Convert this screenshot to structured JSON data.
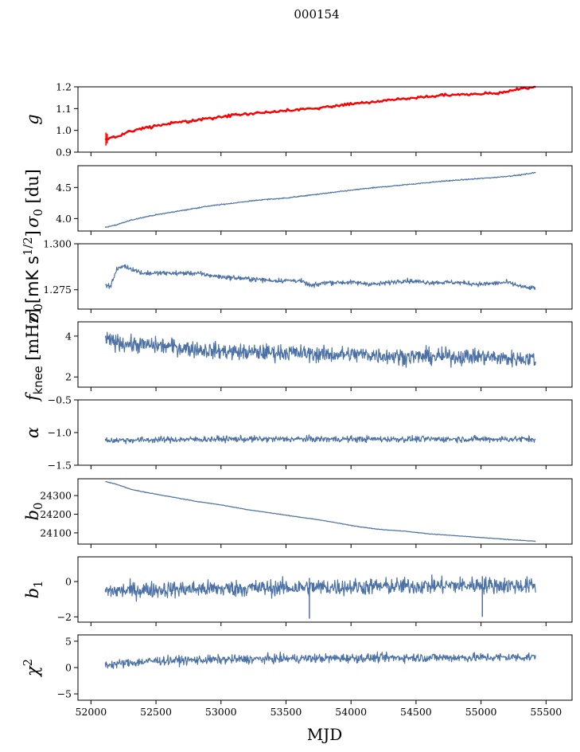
{
  "figure": {
    "suptitle": "000154",
    "xlabel": "MJD",
    "line_color": "#4c72a5",
    "highlight_color": "#ff0000"
  },
  "chart_data": [
    {
      "type": "line",
      "ylabel": "g",
      "ylim": [
        0.9,
        1.2
      ],
      "yticks": [
        0.9,
        1.0,
        1.1,
        1.2
      ],
      "ytick_labels": [
        "0.9",
        "1.0",
        "1.1",
        "1.2"
      ],
      "xlim": [
        51900,
        55700
      ],
      "show_x_ticklabels": false,
      "series": [
        {
          "color": "#4c72a5",
          "x": [
            52110,
            52200,
            52300,
            52400,
            52500,
            52700,
            52900,
            53100,
            53300,
            53500,
            53700,
            53900,
            54100,
            54300,
            54500,
            54700,
            54900,
            55100,
            55300,
            55420
          ],
          "y": [
            0.96,
            0.97,
            0.995,
            1.01,
            1.02,
            1.04,
            1.055,
            1.07,
            1.08,
            1.09,
            1.1,
            1.115,
            1.125,
            1.14,
            1.15,
            1.16,
            1.165,
            1.17,
            1.19,
            1.2
          ]
        },
        {
          "color": "#ff0000",
          "x": [
            52110,
            52200,
            52300,
            52400,
            52500,
            52700,
            52900,
            53100,
            53300,
            53500,
            53700,
            53900,
            54100,
            54300,
            54500,
            54700,
            54900,
            55100,
            55300,
            55420
          ],
          "y": [
            0.96,
            0.97,
            0.995,
            1.01,
            1.02,
            1.04,
            1.055,
            1.07,
            1.08,
            1.09,
            1.1,
            1.115,
            1.125,
            1.14,
            1.15,
            1.16,
            1.165,
            1.17,
            1.19,
            1.2
          ],
          "spread": 0.006,
          "spikes": [
            {
              "x": 52115,
              "low": 0.93,
              "high": 0.99
            },
            {
              "x": 52125,
              "low": 0.94,
              "high": 0.985
            }
          ]
        }
      ]
    },
    {
      "type": "line",
      "ylabel": "σ0 [du]",
      "ylim": [
        3.8,
        4.85
      ],
      "yticks": [
        4.0,
        4.5
      ],
      "ytick_labels": [
        "4.0",
        "4.5"
      ],
      "xlim": [
        51900,
        55700
      ],
      "show_x_ticklabels": false,
      "series": [
        {
          "color": "#4c72a5",
          "x": [
            52110,
            52200,
            52300,
            52400,
            52500,
            52700,
            52900,
            53100,
            53300,
            53500,
            53700,
            53900,
            54100,
            54300,
            54500,
            54700,
            54900,
            55100,
            55300,
            55420
          ],
          "y": [
            3.86,
            3.9,
            3.97,
            4.02,
            4.06,
            4.13,
            4.2,
            4.25,
            4.3,
            4.33,
            4.38,
            4.43,
            4.48,
            4.52,
            4.56,
            4.6,
            4.63,
            4.66,
            4.7,
            4.74
          ],
          "noise": 0.008
        }
      ]
    },
    {
      "type": "line",
      "ylabel": "σ0[mK s1/2]",
      "ylim": [
        1.2645,
        1.3
      ],
      "yticks": [
        1.275,
        1.3
      ],
      "ytick_labels": [
        "1.275",
        "1.300"
      ],
      "xlim": [
        51900,
        55700
      ],
      "show_x_ticklabels": false,
      "series": [
        {
          "color": "#4c72a5",
          "x": [
            52110,
            52150,
            52200,
            52250,
            52400,
            52600,
            52800,
            53000,
            53200,
            53400,
            53600,
            53700,
            53800,
            54000,
            54200,
            54400,
            54600,
            54800,
            55000,
            55200,
            55350,
            55420
          ],
          "y": [
            1.278,
            1.277,
            1.286,
            1.288,
            1.284,
            1.284,
            1.284,
            1.282,
            1.281,
            1.28,
            1.28,
            1.277,
            1.279,
            1.279,
            1.278,
            1.28,
            1.279,
            1.279,
            1.278,
            1.279,
            1.276,
            1.276
          ],
          "noise": 0.0012
        }
      ]
    },
    {
      "type": "line",
      "ylabel": "fknee [mHz]",
      "ylim": [
        1.5,
        4.7
      ],
      "yticks": [
        2,
        4
      ],
      "ytick_labels": [
        "2",
        "4"
      ],
      "xlim": [
        51900,
        55700
      ],
      "show_x_ticklabels": false,
      "series": [
        {
          "color": "#4c72a5",
          "x": [
            52110,
            52300,
            52600,
            52900,
            53200,
            53500,
            53800,
            54100,
            54400,
            54700,
            55000,
            55200,
            55420
          ],
          "y": [
            3.8,
            3.6,
            3.5,
            3.3,
            3.2,
            3.2,
            3.1,
            3.1,
            3.0,
            3.0,
            3.0,
            2.9,
            2.9
          ],
          "noise": 0.38
        }
      ]
    },
    {
      "type": "line",
      "ylabel": "α",
      "ylim": [
        -1.5,
        -0.5
      ],
      "yticks": [
        -1.5,
        -1.0,
        -0.5
      ],
      "ytick_labels": [
        "−1.5",
        "−1.0",
        "−0.5"
      ],
      "xlim": [
        51900,
        55700
      ],
      "show_x_ticklabels": false,
      "series": [
        {
          "color": "#4c72a5",
          "x": [
            52110,
            52500,
            53000,
            53500,
            54000,
            54500,
            55000,
            55420
          ],
          "y": [
            -1.12,
            -1.11,
            -1.1,
            -1.1,
            -1.1,
            -1.1,
            -1.1,
            -1.1
          ],
          "noise": 0.045
        }
      ]
    },
    {
      "type": "line",
      "ylabel": "b0",
      "ylim": [
        24040,
        24390
      ],
      "yticks": [
        24100,
        24200,
        24300
      ],
      "ytick_labels": [
        "24100",
        "24200",
        "24300"
      ],
      "xlim": [
        51900,
        55700
      ],
      "show_x_ticklabels": false,
      "series": [
        {
          "color": "#4c72a5",
          "x": [
            52110,
            52200,
            52300,
            52400,
            52600,
            52800,
            53000,
            53200,
            53400,
            53600,
            53800,
            54000,
            54200,
            54400,
            54600,
            54800,
            55000,
            55200,
            55420
          ],
          "y": [
            24375,
            24360,
            24335,
            24320,
            24295,
            24270,
            24250,
            24225,
            24205,
            24185,
            24165,
            24140,
            24120,
            24110,
            24095,
            24085,
            24075,
            24065,
            24055
          ],
          "noise": 1.5
        }
      ]
    },
    {
      "type": "line",
      "ylabel": "b1",
      "ylim": [
        -2.3,
        1.4
      ],
      "yticks": [
        -2,
        0
      ],
      "ytick_labels": [
        "−2",
        "0"
      ],
      "xlim": [
        51900,
        55700
      ],
      "show_x_ticklabels": false,
      "series": [
        {
          "color": "#4c72a5",
          "x": [
            52110,
            52500,
            53000,
            53500,
            54000,
            54500,
            55000,
            55420
          ],
          "y": [
            -0.55,
            -0.45,
            -0.4,
            -0.35,
            -0.3,
            -0.25,
            -0.2,
            -0.25
          ],
          "noise": 0.45,
          "spikes": [
            {
              "x": 53680,
              "low": -2.1,
              "high": 0.2
            },
            {
              "x": 55010,
              "low": -2.0,
              "high": 0.3
            }
          ]
        }
      ]
    },
    {
      "type": "line",
      "ylabel": "χ2",
      "ylim": [
        -6.2,
        6.2
      ],
      "yticks": [
        -5,
        0,
        5
      ],
      "ytick_labels": [
        "−5",
        "0",
        "5"
      ],
      "xlim": [
        51900,
        55700
      ],
      "show_x_ticklabels": true,
      "xticks": [
        52000,
        52500,
        53000,
        53500,
        54000,
        54500,
        55000,
        55500
      ],
      "xtick_labels": [
        "52000",
        "52500",
        "53000",
        "53500",
        "54000",
        "54500",
        "55000",
        "55500"
      ],
      "series": [
        {
          "color": "#4c72a5",
          "x": [
            52110,
            52500,
            53000,
            53500,
            54000,
            54500,
            55000,
            55420
          ],
          "y": [
            0.5,
            1.3,
            1.5,
            1.7,
            1.8,
            1.9,
            1.9,
            2.0
          ],
          "noise": 0.8
        }
      ]
    }
  ]
}
